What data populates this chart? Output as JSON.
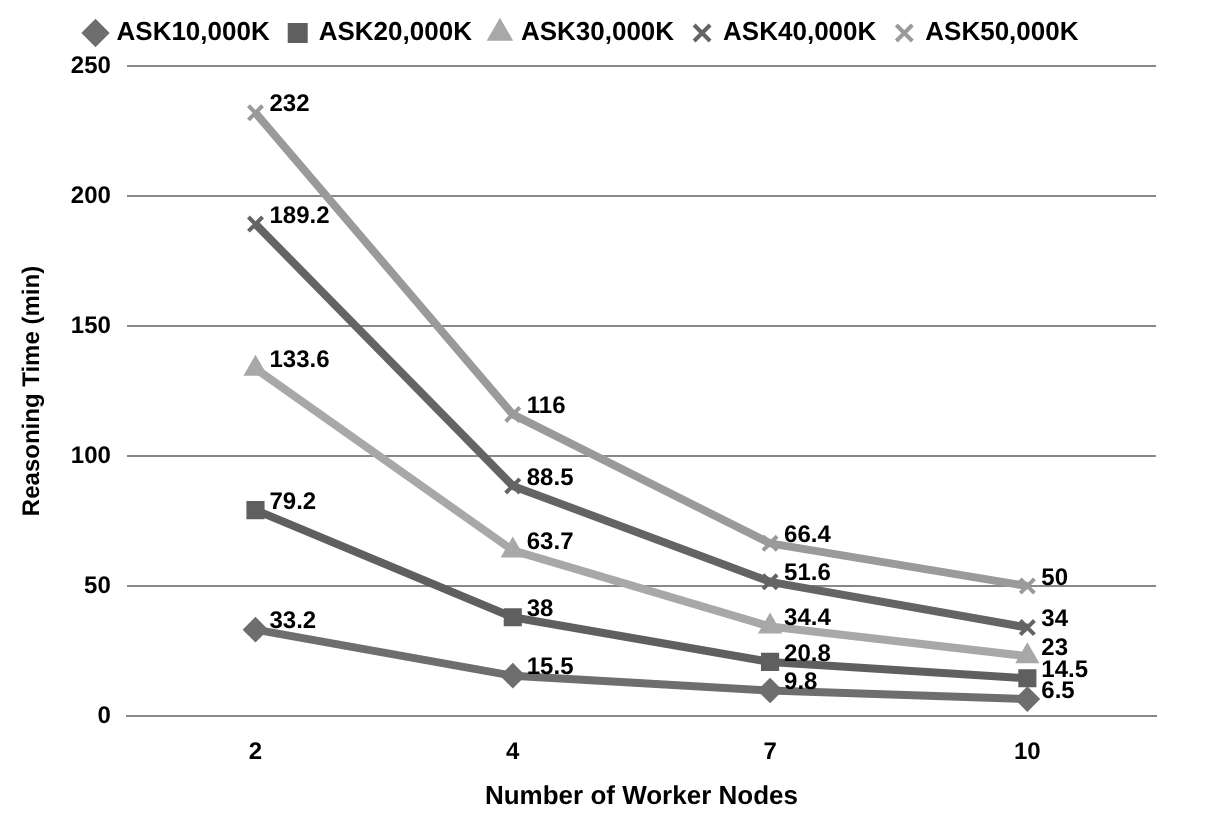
{
  "chart_data": {
    "type": "line",
    "xlabel": "Number of Worker Nodes",
    "ylabel": "Reasoning Time (min)",
    "categories": [
      "2",
      "4",
      "7",
      "10"
    ],
    "series": [
      {
        "name": "ASK10,000K",
        "color": "#6e6e6e",
        "marker": "diamond",
        "values": [
          33.2,
          15.5,
          9.8,
          6.5
        ]
      },
      {
        "name": "ASK20,000K",
        "color": "#5f5f5f",
        "marker": "square",
        "values": [
          79.2,
          38,
          20.8,
          14.5
        ]
      },
      {
        "name": "ASK30,000K",
        "color": "#a8a8a8",
        "marker": "triangle",
        "values": [
          133.6,
          63.7,
          34.4,
          23
        ]
      },
      {
        "name": "ASK40,000K",
        "color": "#646464",
        "marker": "cross",
        "values": [
          189.2,
          88.5,
          51.6,
          34
        ]
      },
      {
        "name": "ASK50,000K",
        "color": "#9a9a9a",
        "marker": "cross",
        "values": [
          232,
          116,
          66.4,
          50
        ]
      }
    ],
    "ylim": [
      0,
      250
    ],
    "yticks": [
      0,
      50,
      100,
      150,
      200,
      250
    ],
    "grid": "y",
    "legend": "top",
    "data_labels": true
  }
}
